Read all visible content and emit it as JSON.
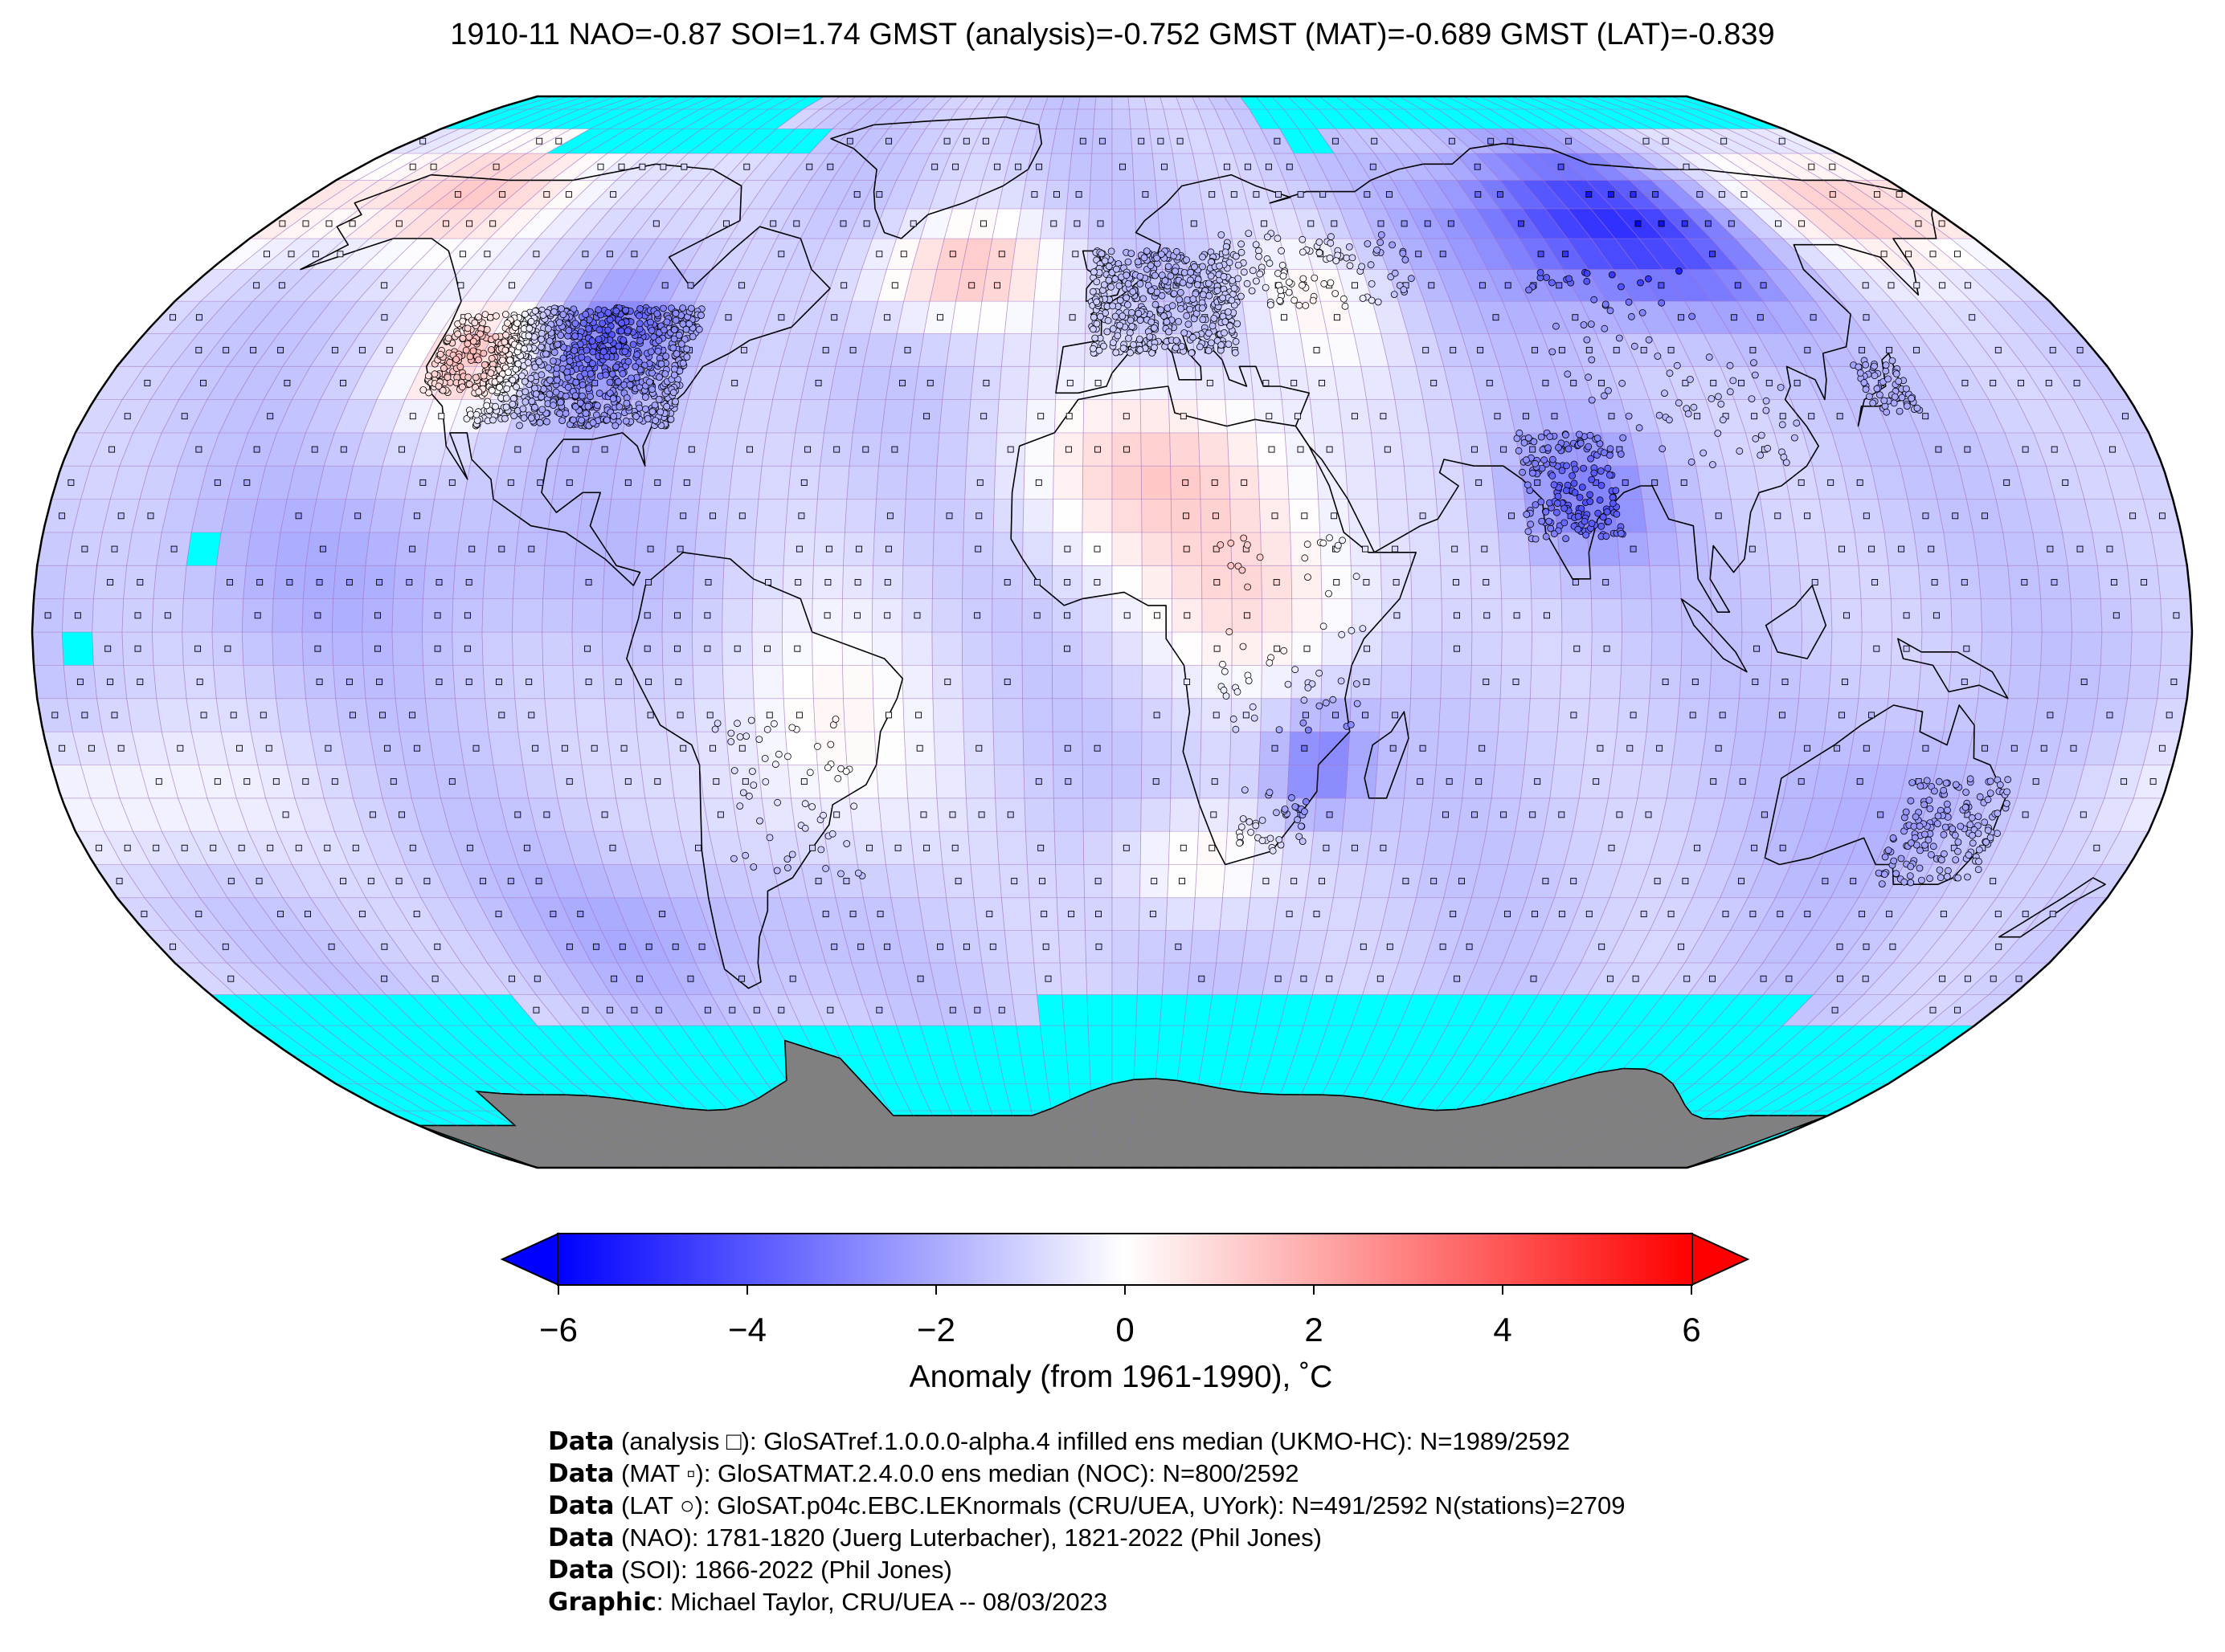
{
  "title": "1910-11 NAO=-0.87 SOI=1.74 GMST (analysis)=-0.752 GMST (MAT)=-0.689 GMST (LAT)=-0.839",
  "colorbar": {
    "label": "Anomaly (from 1961-1990), ˚C",
    "ticks": [
      "−6",
      "−4",
      "−2",
      "0",
      "2",
      "4",
      "6"
    ],
    "range": [
      -6,
      6
    ],
    "colors": {
      "min": "#0000ff",
      "mid": "#ffffff",
      "max": "#ff0000"
    }
  },
  "colors": {
    "missing": "#00ffff",
    "antarctica": "#808080",
    "gridline": "#a070c0",
    "coastline": "#000000"
  },
  "map": {
    "projection": "Robinson",
    "grid_resolution_deg": 5
  },
  "credits": [
    {
      "bold": "Data",
      "text": " (analysis □): GloSATref.1.0.0.0-alpha.4 infilled ens median (UKMO-HC): N=1989/2592"
    },
    {
      "bold": "Data",
      "text": " (MAT ▫): GloSATMAT.2.4.0.0 ens median (NOC): N=800/2592"
    },
    {
      "bold": "Data",
      "text": " (LAT ○): GloSAT.p04c.EBC.LEKnormals (CRU/UEA, UYork): N=491/2592 N(stations)=2709"
    },
    {
      "bold": "Data",
      "text": " (NAO): 1781-1820 (Juerg Luterbacher), 1821-2022 (Phil Jones)"
    },
    {
      "bold": "Data",
      "text": " (SOI): 1866-2022 (Phil Jones)"
    },
    {
      "bold": "Graphic",
      "text": ": Michael Taylor, CRU/UEA -- 08/03/2023"
    }
  ]
}
